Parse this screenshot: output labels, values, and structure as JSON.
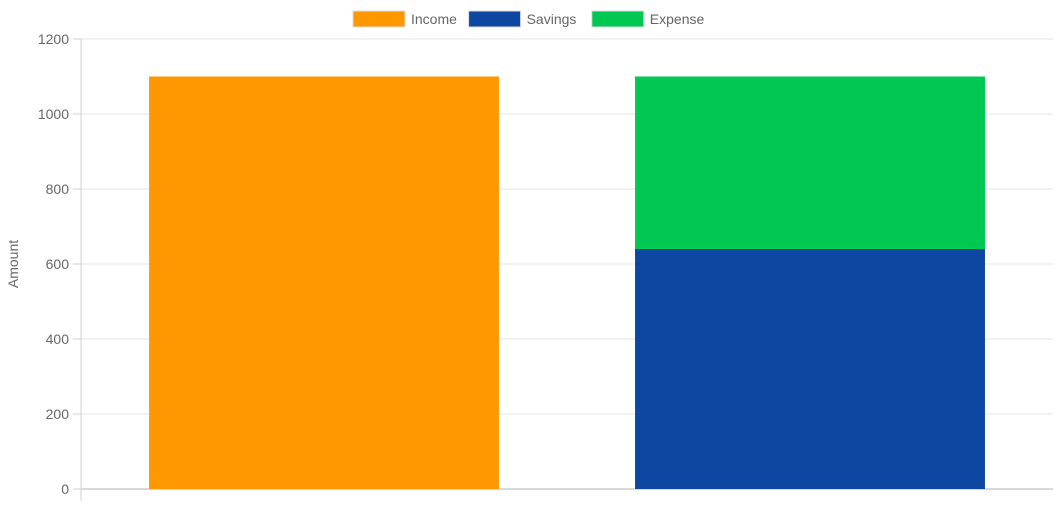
{
  "chart_data": {
    "type": "bar",
    "stacked": true,
    "categories": [
      "",
      ""
    ],
    "series": [
      {
        "name": "Income",
        "color": "#ff9800",
        "stack": "a",
        "values": [
          1100,
          0
        ]
      },
      {
        "name": "Savings",
        "color": "#0d47a1",
        "stack": "b",
        "values": [
          0,
          640
        ]
      },
      {
        "name": "Expense",
        "color": "#00c853",
        "stack": "b",
        "values": [
          0,
          460
        ]
      }
    ],
    "ylabel": "Amount",
    "ylim": [
      0,
      1200
    ],
    "yticks": [
      "0",
      "200",
      "400",
      "600",
      "800",
      "1000",
      "1200"
    ],
    "grid": true,
    "legend_position": "top"
  }
}
